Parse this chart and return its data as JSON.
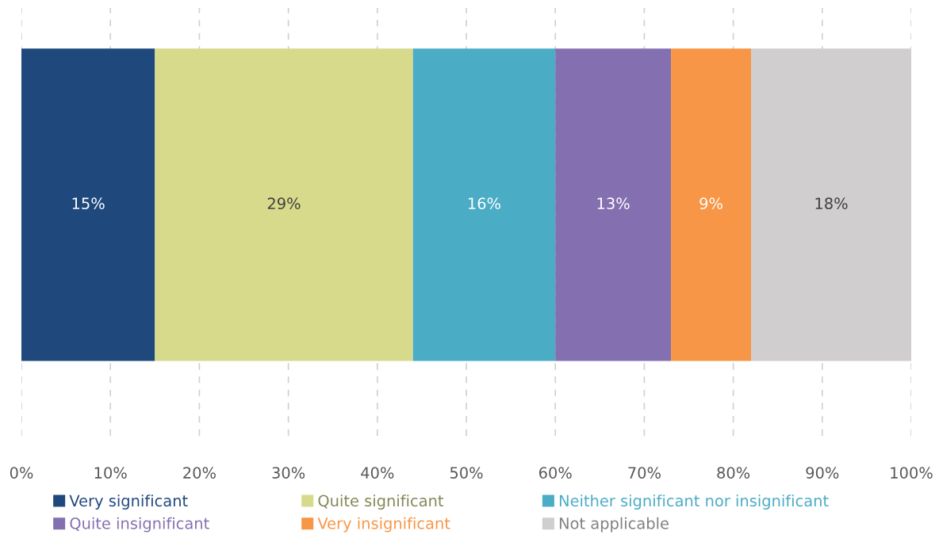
{
  "chart_data": {
    "type": "bar",
    "orientation": "horizontal",
    "stacked": true,
    "categories": [
      null
    ],
    "series": [
      {
        "name": "Very significant",
        "color": "#1f497d",
        "values": [
          15
        ],
        "value_labels": [
          "15%"
        ]
      },
      {
        "name": "Quite significant",
        "color": "#d7d98b",
        "values": [
          29
        ],
        "value_labels": [
          "29%"
        ]
      },
      {
        "name": "Neither significant nor insignificant",
        "color": "#4bacc6",
        "values": [
          16
        ],
        "value_labels": [
          "16%"
        ]
      },
      {
        "name": "Quite insignificant",
        "color": "#8470b0",
        "values": [
          13
        ],
        "value_labels": [
          "13%"
        ]
      },
      {
        "name": "Very insignificant",
        "color": "#f79646",
        "values": [
          9
        ],
        "value_labels": [
          "9%"
        ]
      },
      {
        "name": "Not applicable",
        "color": "#d0cece",
        "values": [
          18
        ],
        "value_labels": [
          "18%"
        ]
      }
    ],
    "xlim": [
      0,
      100
    ],
    "xticks": [
      {
        "value": 0,
        "label": "0%"
      },
      {
        "value": 10,
        "label": "10%"
      },
      {
        "value": 20,
        "label": "20%"
      },
      {
        "value": 30,
        "label": "30%"
      },
      {
        "value": 40,
        "label": "40%"
      },
      {
        "value": 50,
        "label": "50%"
      },
      {
        "value": 60,
        "label": "60%"
      },
      {
        "value": 70,
        "label": "70%"
      },
      {
        "value": 80,
        "label": "80%"
      },
      {
        "value": 90,
        "label": "90%"
      },
      {
        "value": 100,
        "label": "100%"
      }
    ],
    "grid": "x",
    "legend": "bottom"
  }
}
